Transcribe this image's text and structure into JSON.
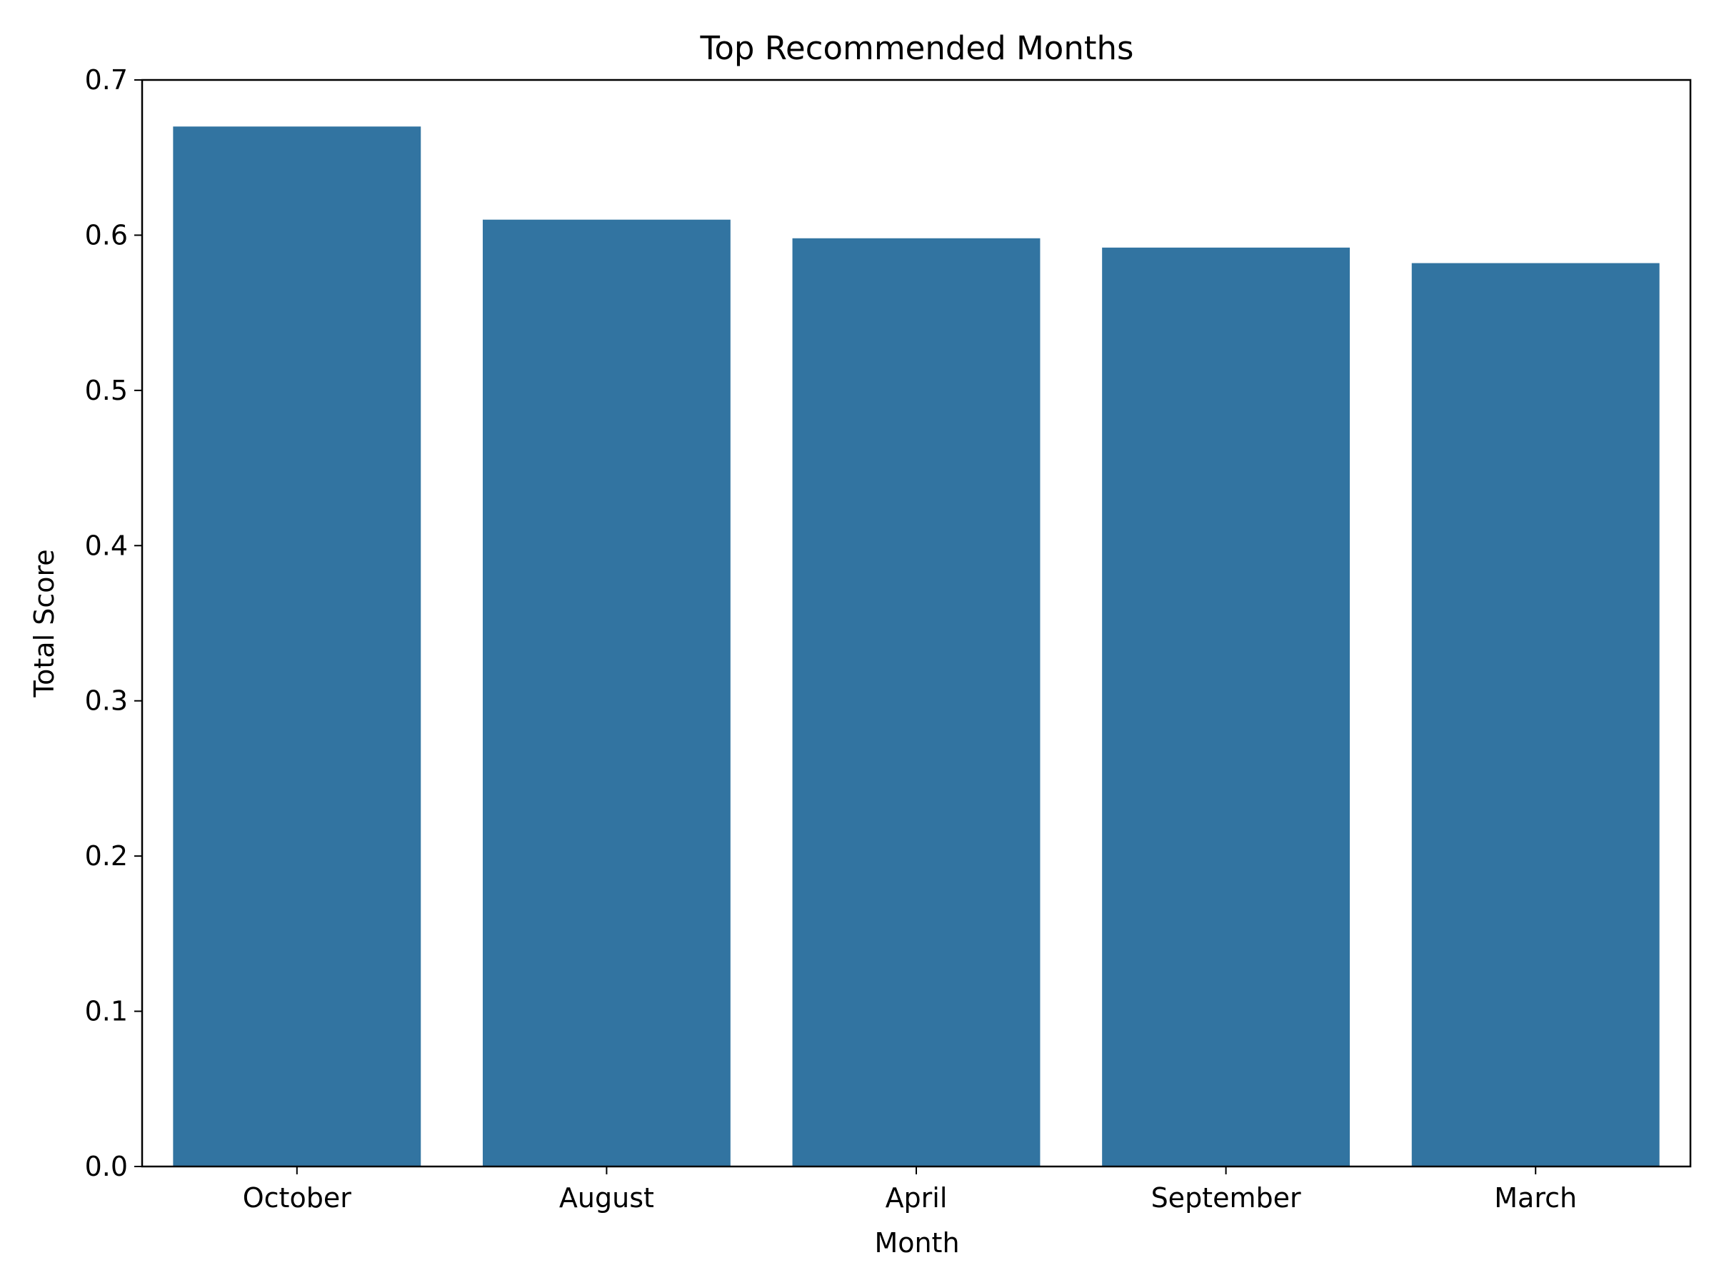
{
  "chart_data": {
    "type": "bar",
    "title": "Top Recommended Months",
    "xlabel": "Month",
    "ylabel": "Total Score",
    "categories": [
      "October",
      "August",
      "April",
      "September",
      "March"
    ],
    "values": [
      0.67,
      0.61,
      0.598,
      0.592,
      0.582
    ],
    "ylim": [
      0,
      0.7
    ],
    "yticks": [
      "0.0",
      "0.1",
      "0.2",
      "0.3",
      "0.4",
      "0.5",
      "0.6",
      "0.7"
    ],
    "grid": false,
    "legend": "none",
    "bar_color": "#3274a1"
  }
}
